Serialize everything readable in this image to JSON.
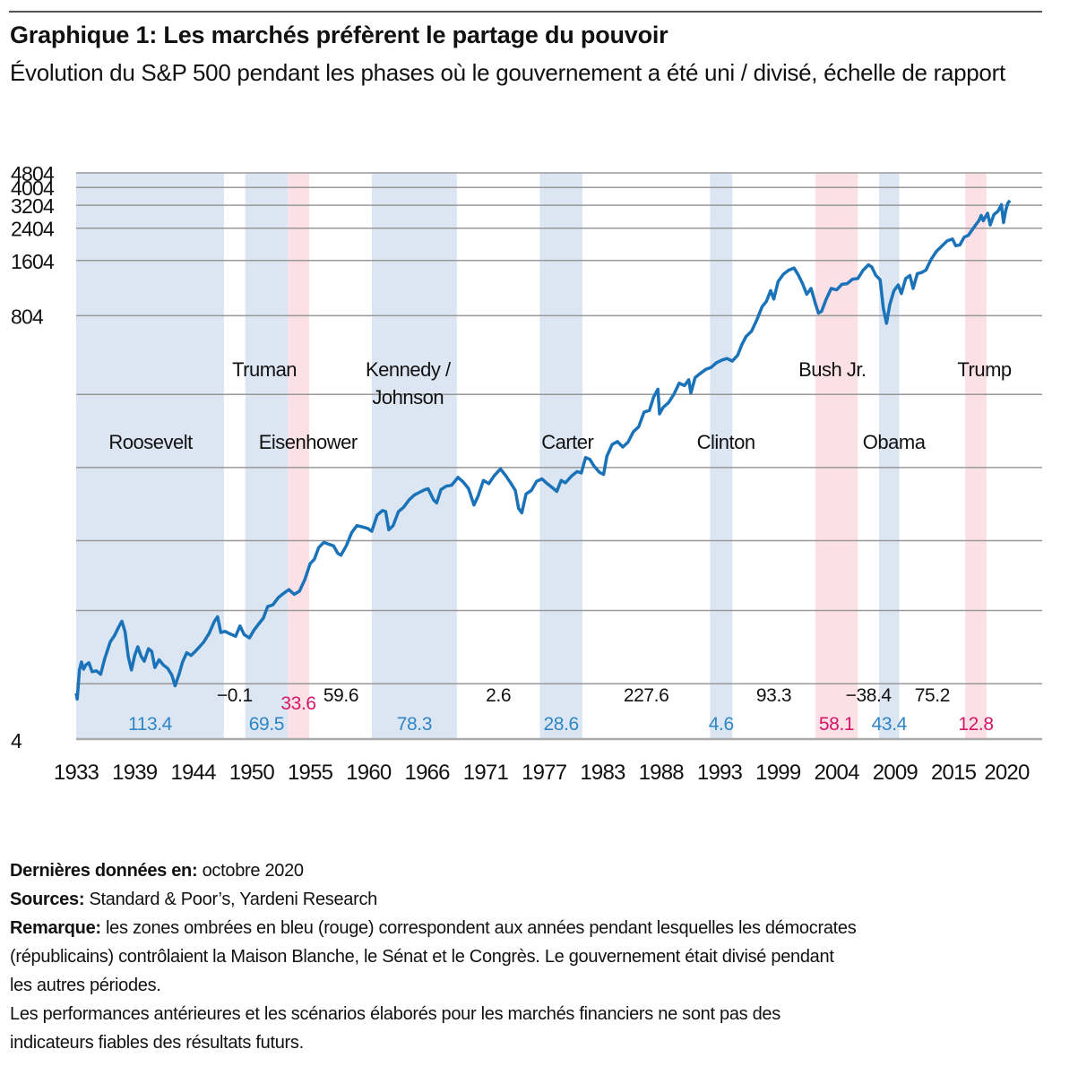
{
  "header": {
    "title": "Graphique 1: Les marchés préfèrent le partage du pouvoir",
    "subtitle": "Évolution du S&P 500 pendant les phases où le gouvernement a été uni / divisé, échelle de rapport"
  },
  "chart_data": {
    "type": "line",
    "title": "Graphique 1: Les marchés préfèrent le partage du pouvoir",
    "subtitle": "Évolution du S&P 500 pendant les phases où le gouvernement a été uni / divisé, échelle de rapport",
    "xlabel": "",
    "ylabel": "",
    "y_scale": "log",
    "ylim": [
      4,
      4804
    ],
    "xlim": [
      1933,
      2020.8
    ],
    "grid": true,
    "y_ticks": [
      4,
      804,
      1604,
      2404,
      3204,
      4004,
      4804
    ],
    "y_gridlines_unlabeled": [
      8,
      20,
      48,
      120,
      300
    ],
    "x_ticks": [
      "1933",
      "1939",
      "1944",
      "1950",
      "1955",
      "1960",
      "1966",
      "1971",
      "1977",
      "1983",
      "1988",
      "1993",
      "1999",
      "2004",
      "2009",
      "2015",
      "2020"
    ],
    "x_tick_values": [
      1933,
      1938.5,
      1944,
      1949.5,
      1955,
      1960.5,
      1966,
      1971.5,
      1977,
      1982.5,
      1988,
      1993.5,
      1999,
      2004.5,
      2010,
      2015.5,
      2020.5
    ],
    "colors": {
      "line": "#1a72b9",
      "democrat_band": "#dce6f2",
      "republican_band": "#fbe0e6",
      "democrat_text": "#2e86c8",
      "republican_text": "#d4166a",
      "divided_text": "#111111",
      "grid": "#999999"
    },
    "series": [
      {
        "name": "S&P 500",
        "points": [
          [
            1933.0,
            7.1
          ],
          [
            1933.1,
            6.6
          ],
          [
            1933.3,
            9.5
          ],
          [
            1933.5,
            10.5
          ],
          [
            1933.7,
            9.6
          ],
          [
            1933.9,
            10.1
          ],
          [
            1934.2,
            10.4
          ],
          [
            1934.5,
            9.3
          ],
          [
            1934.9,
            9.4
          ],
          [
            1935.3,
            9.0
          ],
          [
            1935.7,
            11.0
          ],
          [
            1936.2,
            13.5
          ],
          [
            1936.6,
            14.6
          ],
          [
            1937.0,
            16.3
          ],
          [
            1937.3,
            17.5
          ],
          [
            1937.6,
            15.3
          ],
          [
            1937.9,
            11.2
          ],
          [
            1938.2,
            9.5
          ],
          [
            1938.5,
            11.4
          ],
          [
            1938.8,
            12.7
          ],
          [
            1939.1,
            11.3
          ],
          [
            1939.4,
            10.6
          ],
          [
            1939.8,
            12.4
          ],
          [
            1940.1,
            12.0
          ],
          [
            1940.4,
            9.8
          ],
          [
            1940.8,
            10.8
          ],
          [
            1941.2,
            10.1
          ],
          [
            1941.6,
            9.7
          ],
          [
            1942.0,
            8.9
          ],
          [
            1942.3,
            7.8
          ],
          [
            1942.7,
            9.1
          ],
          [
            1943.0,
            10.5
          ],
          [
            1943.4,
            11.8
          ],
          [
            1943.8,
            11.4
          ],
          [
            1944.2,
            12.0
          ],
          [
            1944.6,
            12.7
          ],
          [
            1945.0,
            13.5
          ],
          [
            1945.5,
            15.0
          ],
          [
            1946.0,
            17.5
          ],
          [
            1946.3,
            18.5
          ],
          [
            1946.6,
            15.2
          ],
          [
            1947.0,
            15.4
          ],
          [
            1947.5,
            14.9
          ],
          [
            1948.0,
            14.5
          ],
          [
            1948.4,
            16.5
          ],
          [
            1948.8,
            14.8
          ],
          [
            1949.3,
            14.2
          ],
          [
            1949.7,
            15.6
          ],
          [
            1950.2,
            17.0
          ],
          [
            1950.6,
            18.2
          ],
          [
            1951.0,
            21.0
          ],
          [
            1951.5,
            21.5
          ],
          [
            1952.0,
            23.5
          ],
          [
            1952.5,
            24.8
          ],
          [
            1953.0,
            26.0
          ],
          [
            1953.5,
            24.5
          ],
          [
            1954.0,
            25.5
          ],
          [
            1954.5,
            29.5
          ],
          [
            1955.0,
            36.0
          ],
          [
            1955.4,
            38.0
          ],
          [
            1955.8,
            44.0
          ],
          [
            1956.3,
            47.0
          ],
          [
            1956.7,
            46.0
          ],
          [
            1957.2,
            45.0
          ],
          [
            1957.6,
            41.0
          ],
          [
            1957.9,
            40.0
          ],
          [
            1958.4,
            45.0
          ],
          [
            1958.9,
            53.0
          ],
          [
            1959.4,
            58.0
          ],
          [
            1959.9,
            57.0
          ],
          [
            1960.4,
            56.0
          ],
          [
            1960.8,
            54.0
          ],
          [
            1961.3,
            66.0
          ],
          [
            1961.8,
            70.0
          ],
          [
            1962.1,
            69.0
          ],
          [
            1962.4,
            55.0
          ],
          [
            1962.8,
            58.0
          ],
          [
            1963.3,
            69.0
          ],
          [
            1963.8,
            73.0
          ],
          [
            1964.3,
            80.0
          ],
          [
            1964.8,
            85.0
          ],
          [
            1965.3,
            88.0
          ],
          [
            1965.8,
            91.0
          ],
          [
            1966.1,
            92.0
          ],
          [
            1966.6,
            80.0
          ],
          [
            1966.9,
            77.0
          ],
          [
            1967.3,
            91.0
          ],
          [
            1967.8,
            95.0
          ],
          [
            1968.3,
            96.0
          ],
          [
            1968.9,
            106.0
          ],
          [
            1969.4,
            100.0
          ],
          [
            1969.9,
            92.0
          ],
          [
            1970.4,
            75.0
          ],
          [
            1970.8,
            84.0
          ],
          [
            1971.3,
            102.0
          ],
          [
            1971.8,
            98.0
          ],
          [
            1972.3,
            108.0
          ],
          [
            1972.9,
            118.0
          ],
          [
            1973.4,
            108.0
          ],
          [
            1973.9,
            98.0
          ],
          [
            1974.3,
            90.0
          ],
          [
            1974.6,
            72.0
          ],
          [
            1974.9,
            68.0
          ],
          [
            1975.3,
            86.0
          ],
          [
            1975.8,
            90.0
          ],
          [
            1976.3,
            101.0
          ],
          [
            1976.8,
            104.0
          ],
          [
            1977.3,
            98.0
          ],
          [
            1977.8,
            93.0
          ],
          [
            1978.2,
            89.0
          ],
          [
            1978.6,
            102.0
          ],
          [
            1979.0,
            99.0
          ],
          [
            1979.6,
            108.0
          ],
          [
            1980.1,
            114.0
          ],
          [
            1980.5,
            112.0
          ],
          [
            1980.9,
            136.0
          ],
          [
            1981.3,
            133.0
          ],
          [
            1981.7,
            122.0
          ],
          [
            1982.2,
            113.0
          ],
          [
            1982.6,
            110.0
          ],
          [
            1982.9,
            138.0
          ],
          [
            1983.4,
            160.0
          ],
          [
            1983.9,
            166.0
          ],
          [
            1984.4,
            155.0
          ],
          [
            1984.9,
            165.0
          ],
          [
            1985.4,
            188.0
          ],
          [
            1985.9,
            200.0
          ],
          [
            1986.4,
            240.0
          ],
          [
            1986.9,
            245.0
          ],
          [
            1987.3,
            290.0
          ],
          [
            1987.7,
            320.0
          ],
          [
            1987.85,
            235.0
          ],
          [
            1988.2,
            255.0
          ],
          [
            1988.7,
            270.0
          ],
          [
            1989.2,
            300.0
          ],
          [
            1989.7,
            345.0
          ],
          [
            1990.2,
            335.0
          ],
          [
            1990.6,
            360.0
          ],
          [
            1990.8,
            305.0
          ],
          [
            1991.2,
            370.0
          ],
          [
            1991.7,
            390.0
          ],
          [
            1992.2,
            410.0
          ],
          [
            1992.7,
            420.0
          ],
          [
            1993.2,
            445.0
          ],
          [
            1993.7,
            460.0
          ],
          [
            1994.2,
            470.0
          ],
          [
            1994.7,
            455.0
          ],
          [
            1995.2,
            490.0
          ],
          [
            1995.6,
            560.0
          ],
          [
            1996.0,
            620.0
          ],
          [
            1996.5,
            660.0
          ],
          [
            1997.0,
            760.0
          ],
          [
            1997.5,
            900.0
          ],
          [
            1997.9,
            960.0
          ],
          [
            1998.3,
            1100.0
          ],
          [
            1998.6,
            990.0
          ],
          [
            1999.0,
            1230.0
          ],
          [
            1999.5,
            1350.0
          ],
          [
            2000.0,
            1420.0
          ],
          [
            2000.5,
            1460.0
          ],
          [
            2000.9,
            1340.0
          ],
          [
            2001.3,
            1200.0
          ],
          [
            2001.7,
            1050.0
          ],
          [
            2002.1,
            1130.0
          ],
          [
            2002.5,
            940.0
          ],
          [
            2002.8,
            830.0
          ],
          [
            2003.1,
            850.0
          ],
          [
            2003.5,
            980.0
          ],
          [
            2004.0,
            1130.0
          ],
          [
            2004.5,
            1110.0
          ],
          [
            2005.0,
            1190.0
          ],
          [
            2005.5,
            1200.0
          ],
          [
            2006.0,
            1270.0
          ],
          [
            2006.5,
            1280.0
          ],
          [
            2007.0,
            1420.0
          ],
          [
            2007.5,
            1520.0
          ],
          [
            2007.8,
            1480.0
          ],
          [
            2008.2,
            1330.0
          ],
          [
            2008.6,
            1260.0
          ],
          [
            2008.9,
            880.0
          ],
          [
            2009.2,
            730.0
          ],
          [
            2009.5,
            920.0
          ],
          [
            2009.9,
            1100.0
          ],
          [
            2010.3,
            1180.0
          ],
          [
            2010.6,
            1060.0
          ],
          [
            2011.0,
            1280.0
          ],
          [
            2011.4,
            1330.0
          ],
          [
            2011.7,
            1130.0
          ],
          [
            2012.1,
            1360.0
          ],
          [
            2012.5,
            1380.0
          ],
          [
            2012.9,
            1420.0
          ],
          [
            2013.4,
            1630.0
          ],
          [
            2013.9,
            1800.0
          ],
          [
            2014.4,
            1920.0
          ],
          [
            2014.9,
            2050.0
          ],
          [
            2015.4,
            2100.0
          ],
          [
            2015.7,
            1930.0
          ],
          [
            2016.1,
            1950.0
          ],
          [
            2016.5,
            2150.0
          ],
          [
            2016.9,
            2200.0
          ],
          [
            2017.4,
            2420.0
          ],
          [
            2017.9,
            2650.0
          ],
          [
            2018.1,
            2820.0
          ],
          [
            2018.3,
            2640.0
          ],
          [
            2018.7,
            2900.0
          ],
          [
            2018.95,
            2500.0
          ],
          [
            2019.3,
            2850.0
          ],
          [
            2019.7,
            2980.0
          ],
          [
            2020.0,
            3230.0
          ],
          [
            2020.2,
            2580.0
          ],
          [
            2020.4,
            3000.0
          ],
          [
            2020.6,
            3280.0
          ],
          [
            2020.8,
            3400.0
          ]
        ]
      }
    ],
    "bands": [
      {
        "party": "democrat",
        "start": 1933.0,
        "end": 1946.9,
        "label": "Roosevelt",
        "value": "113.4"
      },
      {
        "party": "democrat",
        "start": 1948.9,
        "end": 1952.9,
        "label": "Truman",
        "value": "69.5"
      },
      {
        "party": "republican",
        "start": 1952.9,
        "end": 1954.9,
        "label": "",
        "value": "33.6"
      },
      {
        "party": "democrat",
        "start": 1960.8,
        "end": 1968.8,
        "label": "Kennedy / Johnson",
        "value": "78.3"
      },
      {
        "party": "democrat",
        "start": 1976.6,
        "end": 1980.6,
        "label": "Carter",
        "value": "28.6"
      },
      {
        "party": "democrat",
        "start": 1992.6,
        "end": 1994.7,
        "label": "Clinton",
        "value": "4.6"
      },
      {
        "party": "republican",
        "start": 2002.5,
        "end": 2006.5,
        "label": "Bush Jr.",
        "value": "58.1"
      },
      {
        "party": "democrat",
        "start": 2008.5,
        "end": 2010.4,
        "label": "Obama",
        "value": "43.4"
      },
      {
        "party": "republican",
        "start": 2016.6,
        "end": 2018.6,
        "label": "Trump",
        "value": "12.8"
      }
    ],
    "president_labels": [
      {
        "text": "Roosevelt",
        "x": 1940.0,
        "row": 2
      },
      {
        "text": "Truman",
        "x": 1950.7,
        "row": 1
      },
      {
        "text": "Eisenhower",
        "x": 1954.8,
        "row": 2
      },
      {
        "text": "Kennedy / Johnson",
        "x": 1964.2,
        "row": 1,
        "lines": [
          "Kennedy /",
          "Johnson"
        ]
      },
      {
        "text": "Carter",
        "x": 1979.2,
        "row": 2
      },
      {
        "text": "Clinton",
        "x": 1994.1,
        "row": 2
      },
      {
        "text": "Bush Jr.",
        "x": 2004.1,
        "row": 1
      },
      {
        "text": "Obama",
        "x": 2009.9,
        "row": 2
      },
      {
        "text": "Trump",
        "x": 2018.4,
        "row": 1
      }
    ],
    "divided_values": [
      {
        "value": "−0.1",
        "x": 1947.9
      },
      {
        "value": "59.6",
        "x": 1957.9
      },
      {
        "value": "2.6",
        "x": 1972.7
      },
      {
        "value": "227.6",
        "x": 1986.6
      },
      {
        "value": "93.3",
        "x": 1998.6
      },
      {
        "value": "−38.4",
        "x": 2007.5
      },
      {
        "value": "75.2",
        "x": 2013.5
      }
    ]
  },
  "footer": {
    "last_data_label": "Dernières données en:",
    "last_data_value": " octobre 2020",
    "sources_label": "Sources:",
    "sources_value": " Standard & Poor’s, Yardeni Research",
    "note_label": "Remarque:",
    "note_line1": " les zones ombrées en bleu (rouge) correspondent aux années pendant lesquelles les démocrates",
    "note_line2": "(républicains) contrôlaient la Maison Blanche, le Sénat et le Congrès. Le gouvernement était divisé pendant",
    "note_line3": "les autres périodes.",
    "disclaimer_line1": "Les performances antérieures et les scénarios élaborés pour les marchés financiers ne sont pas des",
    "disclaimer_line2": "indicateurs fiables des résultats futurs."
  }
}
